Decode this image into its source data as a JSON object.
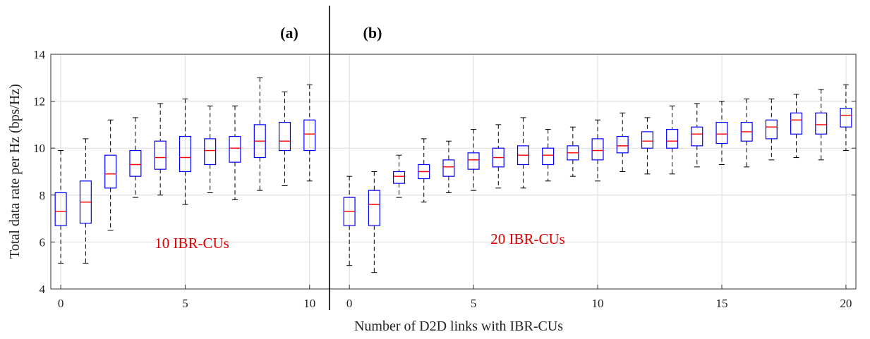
{
  "chart_data": {
    "type": "box",
    "ylabel": "Total data rate per Hz (bps/Hz)",
    "xlabel": "Number of D2D links with IBR-CUs",
    "ylim": [
      4,
      14
    ],
    "yticks": [
      4,
      6,
      8,
      10,
      12,
      14
    ],
    "grid": true,
    "panels": [
      {
        "label": "(a)",
        "annotation": "10 IBR-CUs",
        "xlim": [
          -0.4,
          10.8
        ],
        "xticks": [
          0,
          5,
          10
        ],
        "boxes": [
          {
            "x": 0,
            "low": 5.1,
            "q1": 6.7,
            "median": 7.3,
            "q3": 8.1,
            "high": 9.9
          },
          {
            "x": 1,
            "low": 5.1,
            "q1": 6.8,
            "median": 7.7,
            "q3": 8.6,
            "high": 10.4
          },
          {
            "x": 2,
            "low": 6.5,
            "q1": 8.3,
            "median": 8.9,
            "q3": 9.7,
            "high": 11.2
          },
          {
            "x": 3,
            "low": 7.9,
            "q1": 8.8,
            "median": 9.3,
            "q3": 9.9,
            "high": 11.3
          },
          {
            "x": 4,
            "low": 8.0,
            "q1": 9.1,
            "median": 9.6,
            "q3": 10.3,
            "high": 11.9
          },
          {
            "x": 5,
            "low": 7.6,
            "q1": 9.0,
            "median": 9.6,
            "q3": 10.5,
            "high": 12.1
          },
          {
            "x": 6,
            "low": 8.1,
            "q1": 9.3,
            "median": 9.9,
            "q3": 10.4,
            "high": 11.8
          },
          {
            "x": 7,
            "low": 7.8,
            "q1": 9.4,
            "median": 10.0,
            "q3": 10.5,
            "high": 11.8
          },
          {
            "x": 8,
            "low": 8.2,
            "q1": 9.6,
            "median": 10.3,
            "q3": 11.0,
            "high": 13.0
          },
          {
            "x": 9,
            "low": 8.4,
            "q1": 9.9,
            "median": 10.3,
            "q3": 11.1,
            "high": 12.4
          },
          {
            "x": 10,
            "low": 8.6,
            "q1": 9.9,
            "median": 10.6,
            "q3": 11.2,
            "high": 12.7
          }
        ]
      },
      {
        "label": "(b)",
        "annotation": "20 IBR-CUs",
        "xlim": [
          -0.8,
          20.4
        ],
        "xticks": [
          0,
          5,
          10,
          15,
          20
        ],
        "boxes": [
          {
            "x": 0,
            "low": 5.0,
            "q1": 6.7,
            "median": 7.3,
            "q3": 7.9,
            "high": 8.8
          },
          {
            "x": 1,
            "low": 4.7,
            "q1": 6.7,
            "median": 7.6,
            "q3": 8.2,
            "high": 9.0
          },
          {
            "x": 2,
            "low": 7.9,
            "q1": 8.5,
            "median": 8.8,
            "q3": 9.0,
            "high": 9.7
          },
          {
            "x": 3,
            "low": 7.7,
            "q1": 8.7,
            "median": 9.0,
            "q3": 9.3,
            "high": 10.4
          },
          {
            "x": 4,
            "low": 8.1,
            "q1": 8.8,
            "median": 9.2,
            "q3": 9.5,
            "high": 10.3
          },
          {
            "x": 5,
            "low": 8.2,
            "q1": 9.1,
            "median": 9.5,
            "q3": 9.8,
            "high": 10.8
          },
          {
            "x": 6,
            "low": 8.3,
            "q1": 9.2,
            "median": 9.6,
            "q3": 10.0,
            "high": 11.0
          },
          {
            "x": 7,
            "low": 8.3,
            "q1": 9.3,
            "median": 9.7,
            "q3": 10.1,
            "high": 11.3
          },
          {
            "x": 8,
            "low": 8.6,
            "q1": 9.3,
            "median": 9.7,
            "q3": 10.0,
            "high": 10.8
          },
          {
            "x": 9,
            "low": 8.8,
            "q1": 9.5,
            "median": 9.8,
            "q3": 10.1,
            "high": 10.9
          },
          {
            "x": 10,
            "low": 8.6,
            "q1": 9.5,
            "median": 9.9,
            "q3": 10.4,
            "high": 11.2
          },
          {
            "x": 11,
            "low": 9.0,
            "q1": 9.8,
            "median": 10.1,
            "q3": 10.5,
            "high": 11.5
          },
          {
            "x": 12,
            "low": 8.9,
            "q1": 10.0,
            "median": 10.3,
            "q3": 10.7,
            "high": 11.3
          },
          {
            "x": 13,
            "low": 8.9,
            "q1": 10.0,
            "median": 10.3,
            "q3": 10.8,
            "high": 11.8
          },
          {
            "x": 14,
            "low": 9.2,
            "q1": 10.1,
            "median": 10.6,
            "q3": 10.9,
            "high": 11.9
          },
          {
            "x": 15,
            "low": 9.3,
            "q1": 10.2,
            "median": 10.6,
            "q3": 11.1,
            "high": 12.0
          },
          {
            "x": 16,
            "low": 9.2,
            "q1": 10.3,
            "median": 10.7,
            "q3": 11.1,
            "high": 12.1
          },
          {
            "x": 17,
            "low": 9.5,
            "q1": 10.4,
            "median": 10.9,
            "q3": 11.2,
            "high": 12.1
          },
          {
            "x": 18,
            "low": 9.6,
            "q1": 10.6,
            "median": 11.2,
            "q3": 11.5,
            "high": 12.3
          },
          {
            "x": 19,
            "low": 9.5,
            "q1": 10.6,
            "median": 11.0,
            "q3": 11.5,
            "high": 12.5
          },
          {
            "x": 20,
            "low": 9.9,
            "q1": 10.9,
            "median": 11.4,
            "q3": 11.7,
            "high": 12.7
          }
        ]
      }
    ]
  }
}
